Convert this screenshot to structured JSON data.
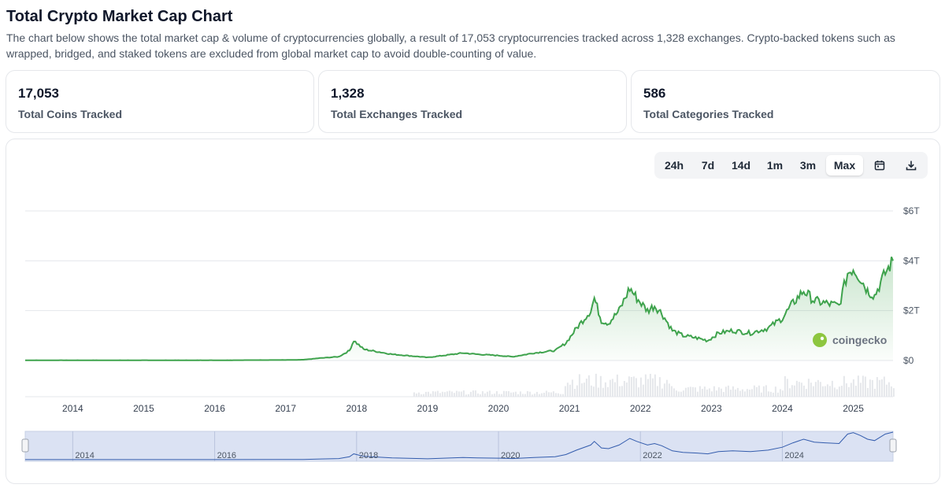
{
  "page": {
    "title": "Total Crypto Market Cap Chart",
    "description": "The chart below shows the total market cap & volume of cryptocurrencies globally, a result of 17,053 cryptocurrencies tracked across 1,328 exchanges. Crypto-backed tokens such as wrapped, bridged, and staked tokens are excluded from global market cap to avoid double-counting of value."
  },
  "stats": [
    {
      "value": "17,053",
      "label": "Total Coins Tracked"
    },
    {
      "value": "1,328",
      "label": "Total Exchanges Tracked"
    },
    {
      "value": "586",
      "label": "Total Categories Tracked"
    }
  ],
  "toolbar": {
    "ranges": [
      "24h",
      "7d",
      "14d",
      "1m",
      "3m",
      "Max"
    ],
    "active_range": "Max",
    "icons": [
      "calendar-icon",
      "download-icon"
    ]
  },
  "watermark": {
    "text": "coingecko",
    "icon": "coingecko-logo-icon"
  },
  "colors": {
    "line": "#3fa34d",
    "area_top": "#3fa34d",
    "volume": "#e5e7eb",
    "navigator_fill": "#dbe2f3",
    "navigator_line": "#335cad"
  },
  "chart_data": {
    "type": "area",
    "title": "",
    "xlabel": "",
    "ylabel": "",
    "x_unit": "year",
    "y_unit": "USD trillions",
    "ylim": [
      0,
      6
    ],
    "y_ticks": [
      0,
      2,
      4,
      6
    ],
    "y_tick_labels": [
      "$0",
      "$2T",
      "$4T",
      "$6T"
    ],
    "x_ticks": [
      2014,
      2015,
      2016,
      2017,
      2018,
      2019,
      2020,
      2021,
      2022,
      2023,
      2024,
      2025
    ],
    "x_tick_labels": [
      "2014",
      "2015",
      "2016",
      "2017",
      "2018",
      "2019",
      "2020",
      "2021",
      "2022",
      "2023",
      "2024",
      "2025"
    ],
    "xlim": [
      2013.33,
      2025.56
    ],
    "grid": true,
    "series": [
      {
        "x": [
          2013.33,
          2014.0,
          2015.0,
          2016.0,
          2017.0,
          2017.25,
          2017.5,
          2017.75,
          2017.9,
          2017.96,
          2018.1,
          2018.3,
          2018.5,
          2018.9,
          2019.0,
          2019.5,
          2019.7,
          2020.0,
          2020.2,
          2020.5,
          2020.8,
          2020.95,
          2021.1,
          2021.3,
          2021.35,
          2021.45,
          2021.55,
          2021.7,
          2021.85,
          2021.95,
          2022.1,
          2022.2,
          2022.3,
          2022.45,
          2022.6,
          2022.8,
          2022.95,
          2023.1,
          2023.3,
          2023.55,
          2023.8,
          2024.0,
          2024.15,
          2024.3,
          2024.45,
          2024.6,
          2024.8,
          2024.92,
          2025.0,
          2025.1,
          2025.2,
          2025.3,
          2025.45,
          2025.56
        ],
        "values": [
          0.01,
          0.01,
          0.01,
          0.01,
          0.02,
          0.03,
          0.1,
          0.15,
          0.4,
          0.8,
          0.45,
          0.35,
          0.25,
          0.15,
          0.12,
          0.3,
          0.25,
          0.2,
          0.15,
          0.3,
          0.4,
          0.7,
          1.3,
          2.0,
          2.5,
          1.6,
          1.5,
          2.0,
          2.9,
          2.5,
          2.0,
          2.2,
          1.9,
          1.2,
          1.0,
          0.9,
          0.8,
          1.1,
          1.2,
          1.1,
          1.3,
          1.7,
          2.3,
          2.8,
          2.4,
          2.3,
          2.2,
          3.5,
          3.7,
          3.3,
          2.8,
          2.6,
          3.5,
          4.0
        ]
      }
    ]
  },
  "navigator": {
    "labels": [
      "2014",
      "2016",
      "2018",
      "2020",
      "2022",
      "2024"
    ]
  }
}
